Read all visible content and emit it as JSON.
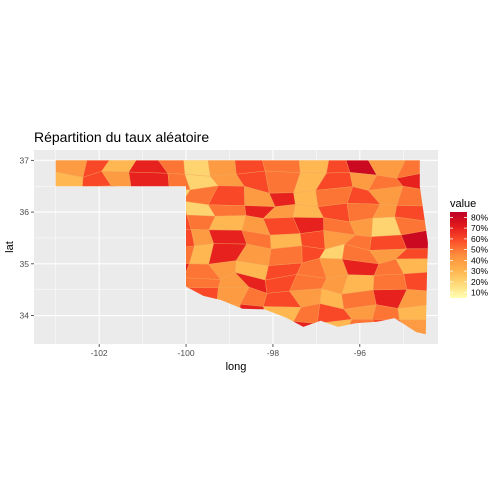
{
  "chart_data": {
    "type": "choropleth",
    "title": "Répartition du taux aléatoire",
    "xlabel": "long",
    "ylabel": "lat",
    "xlim": [
      -103.5,
      -94.2
    ],
    "ylim": [
      33.45,
      37.2
    ],
    "x_ticks": [
      -102,
      -100,
      -98,
      -96
    ],
    "x_tick_labels": [
      "-102",
      "-100",
      "-98",
      "-96"
    ],
    "y_ticks": [
      34,
      35,
      36,
      37
    ],
    "y_tick_labels": [
      "34",
      "35",
      "36",
      "37"
    ],
    "grid": true,
    "legend": {
      "title": "value",
      "position": "right",
      "breaks": [
        0.8,
        0.7,
        0.6,
        0.5,
        0.4,
        0.3,
        0.2,
        0.1
      ],
      "labels": [
        "80%",
        "70%",
        "60%",
        "50%",
        "40%",
        "30%",
        "20%",
        "10%"
      ],
      "range": [
        0.05,
        0.85
      ]
    },
    "palette": [
      "#ffffb2",
      "#fed976",
      "#feb24c",
      "#fd8d3c",
      "#fc4e2a",
      "#e31a1c",
      "#bd0026"
    ],
    "panel_color": "#ebebeb",
    "gridline_color": "#ffffff",
    "outline": [
      [
        -103.0,
        37.0
      ],
      [
        -94.62,
        37.0
      ],
      [
        -94.62,
        36.5
      ],
      [
        -94.43,
        35.4
      ],
      [
        -94.45,
        34.9
      ],
      [
        -94.48,
        33.64
      ],
      [
        -94.7,
        33.68
      ],
      [
        -95.2,
        33.95
      ],
      [
        -95.6,
        33.88
      ],
      [
        -96.1,
        33.85
      ],
      [
        -96.5,
        33.78
      ],
      [
        -96.9,
        33.9
      ],
      [
        -97.3,
        33.78
      ],
      [
        -97.7,
        33.96
      ],
      [
        -98.2,
        34.12
      ],
      [
        -98.7,
        34.13
      ],
      [
        -99.2,
        34.3
      ],
      [
        -99.6,
        34.38
      ],
      [
        -100.0,
        34.56
      ],
      [
        -100.0,
        36.5
      ],
      [
        -103.0,
        36.5
      ]
    ],
    "values": [
      0.4,
      0.6,
      0.3,
      0.7,
      0.5,
      0.2,
      0.4,
      0.6,
      0.5,
      0.3,
      0.6,
      0.8,
      0.4,
      0.5,
      0.3,
      0.6,
      0.4,
      0.7,
      0.5,
      0.2,
      0.4,
      0.6,
      0.5,
      0.3,
      0.6,
      0.4,
      0.5,
      0.7,
      0.3,
      0.5,
      0.6,
      0.4,
      0.2,
      0.5,
      0.6,
      0.4,
      0.7,
      0.3,
      0.5,
      0.6,
      0.4,
      0.5,
      0.8,
      0.3,
      0.4,
      0.6,
      0.5,
      0.2,
      0.5,
      0.7,
      0.4,
      0.3,
      0.6,
      0.5,
      0.4,
      0.6,
      0.3,
      0.5,
      0.7,
      0.4,
      0.6,
      0.5,
      0.3,
      0.4,
      0.6,
      0.7,
      0.5,
      0.4,
      0.2,
      0.5,
      0.6,
      0.3,
      0.4,
      0.5,
      0.6,
      0.4,
      0.7,
      0.5,
      0.3,
      0.6,
      0.4,
      0.5,
      0.6,
      0.8,
      0.3,
      0.5,
      0.4,
      0.6,
      0.5,
      0.3,
      0.7,
      0.4,
      0.5,
      0.6,
      0.2,
      0.5,
      0.4,
      0.6,
      0.5,
      0.3,
      0.6,
      0.4,
      0.7,
      0.5,
      0.4,
      0.3,
      0.6,
      0.5,
      0.4,
      0.7,
      0.5,
      0.3,
      0.6,
      0.4,
      0.5,
      0.6,
      0.3,
      0.5,
      0.4,
      0.7,
      0.6,
      0.5,
      0.4,
      0.3,
      0.5,
      0.6,
      0.4,
      0.2,
      0.5,
      0.7,
      0.3,
      0.6,
      0.4,
      0.5,
      0.6,
      0.4,
      0.3,
      0.5,
      0.7,
      0.4,
      0.6,
      0.5,
      0.3,
      0.4,
      0.5,
      0.6,
      0.4,
      0.7,
      0.3,
      0.5,
      0.6,
      0.4,
      0.5,
      0.3,
      0.6,
      0.5,
      0.4,
      0.6,
      0.5,
      0.2,
      0.6,
      0.4,
      0.5,
      0.7,
      0.3,
      0.5,
      0.6,
      0.4
    ]
  }
}
